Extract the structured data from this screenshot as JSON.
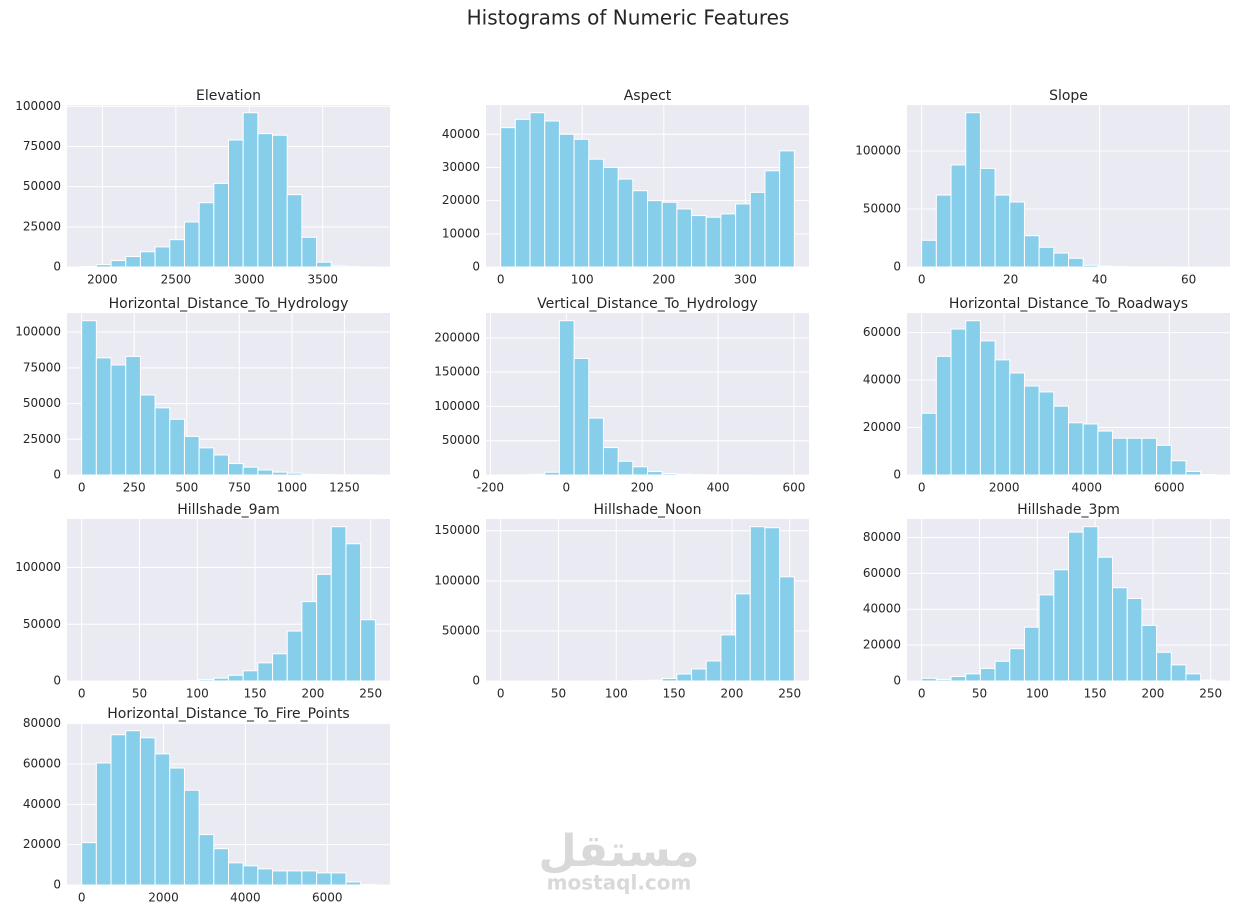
{
  "title": "Histograms of Numeric Features",
  "watermark": {
    "arabic": "مستقل",
    "text": "mostaql.com"
  },
  "chart_data": [
    {
      "type": "histogram",
      "title": "Elevation",
      "color": "#87ceeb",
      "grid": true,
      "bins": [
        1859,
        1958.95,
        2058.9,
        2158.85,
        2258.8,
        2358.75,
        2458.7,
        2558.65,
        2658.6,
        2758.55,
        2858.5,
        2958.45,
        3058.4,
        3158.35,
        3258.3,
        3358.25,
        3458.2,
        3558.15,
        3658.1,
        3758.05,
        3858
      ],
      "values": [
        300,
        1500,
        4000,
        6500,
        9500,
        12500,
        17000,
        28000,
        40000,
        52000,
        79000,
        96000,
        83000,
        82000,
        45000,
        18500,
        3000,
        700,
        200,
        50
      ],
      "xlim": [
        1759,
        3958
      ],
      "xticks": [
        2000,
        2500,
        3000,
        3500
      ],
      "ylim": [
        0,
        100800
      ],
      "yticks": [
        0,
        25000,
        50000,
        75000,
        100000
      ]
    },
    {
      "type": "histogram",
      "title": "Aspect",
      "color": "#87ceeb",
      "grid": true,
      "bins": [
        0,
        18,
        36,
        54,
        72,
        90,
        108,
        126,
        144,
        162,
        180,
        198,
        216,
        234,
        252,
        270,
        288,
        306,
        324,
        342,
        360
      ],
      "values": [
        42000,
        44500,
        46500,
        44000,
        40000,
        38500,
        32500,
        30000,
        26500,
        23000,
        20000,
        19500,
        17500,
        15500,
        15000,
        16000,
        19000,
        22500,
        29000,
        35000
      ],
      "xlim": [
        -18,
        378
      ],
      "xticks": [
        0,
        100,
        200,
        300
      ],
      "ylim": [
        0,
        48825
      ],
      "yticks": [
        0,
        10000,
        20000,
        30000,
        40000
      ]
    },
    {
      "type": "histogram",
      "title": "Slope",
      "color": "#87ceeb",
      "grid": true,
      "bins": [
        0,
        3.3,
        6.6,
        9.9,
        13.2,
        16.5,
        19.8,
        23.1,
        26.4,
        29.7,
        33,
        36.3,
        39.6,
        42.9,
        46.2,
        49.5,
        52.8,
        56.1,
        59.4,
        62.7,
        66
      ],
      "values": [
        23000,
        62000,
        88000,
        133000,
        85000,
        62000,
        56000,
        27000,
        17000,
        12000,
        7500,
        1500,
        700,
        300,
        100,
        50,
        20,
        10,
        5,
        2
      ],
      "xlim": [
        -3.3,
        69.3
      ],
      "xticks": [
        0,
        20,
        40,
        60
      ],
      "ylim": [
        0,
        139650
      ],
      "yticks": [
        0,
        50000,
        100000
      ]
    },
    {
      "type": "histogram",
      "title": "Horizontal_Distance_To_Hydrology",
      "color": "#87ceeb",
      "grid": true,
      "bins": [
        0,
        69.85,
        139.7,
        209.55,
        279.4,
        349.25,
        419.1,
        488.95,
        558.8,
        628.65,
        698.5,
        768.35,
        838.2,
        908.05,
        977.9,
        1047.75,
        1117.6,
        1187.45,
        1257.3,
        1327.15,
        1397
      ],
      "values": [
        108000,
        82000,
        77000,
        83000,
        56000,
        47000,
        39000,
        27000,
        19000,
        14000,
        8000,
        5500,
        3500,
        2000,
        1300,
        500,
        300,
        150,
        100,
        50
      ],
      "xlim": [
        -69.85,
        1466.85
      ],
      "xticks": [
        0,
        250,
        500,
        750,
        1000,
        1250
      ],
      "ylim": [
        0,
        113400
      ],
      "yticks": [
        0,
        25000,
        50000,
        75000,
        100000
      ]
    },
    {
      "type": "histogram",
      "title": "Vertical_Distance_To_Hydrology",
      "color": "#87ceeb",
      "grid": true,
      "bins": [
        -173,
        -134.3,
        -95.6,
        -56.9,
        -18.2,
        20.5,
        59.2,
        97.9,
        136.6,
        175.3,
        214,
        252.7,
        291.4,
        330.1,
        368.8,
        407.5,
        446.2,
        484.9,
        523.6,
        562.3,
        601
      ],
      "values": [
        50,
        200,
        1000,
        4000,
        225000,
        170000,
        83000,
        40000,
        20000,
        12000,
        5000,
        2000,
        1000,
        500,
        300,
        150,
        60,
        30,
        15,
        5
      ],
      "xlim": [
        -211.7,
        639.7
      ],
      "xticks": [
        -200,
        0,
        200,
        400,
        600
      ],
      "ylim": [
        0,
        236250
      ],
      "yticks": [
        0,
        50000,
        100000,
        150000,
        200000
      ]
    },
    {
      "type": "histogram",
      "title": "Horizontal_Distance_To_Roadways",
      "color": "#87ceeb",
      "grid": true,
      "bins": [
        0,
        355.85,
        711.7,
        1067.55,
        1423.4,
        1779.25,
        2135.1,
        2490.95,
        2846.8,
        3202.65,
        3558.5,
        3914.35,
        4270.2,
        4626.05,
        4981.9,
        5337.75,
        5693.6,
        6049.45,
        6405.3,
        6761.15,
        7117
      ],
      "values": [
        26000,
        50000,
        61500,
        65000,
        56500,
        48500,
        43000,
        37500,
        35000,
        29000,
        22000,
        21500,
        18500,
        15500,
        15500,
        15500,
        12500,
        6000,
        1500,
        200
      ],
      "xlim": [
        -355.85,
        7472.85
      ],
      "xticks": [
        0,
        2000,
        4000,
        6000
      ],
      "ylim": [
        0,
        68250
      ],
      "yticks": [
        0,
        20000,
        40000,
        60000
      ]
    },
    {
      "type": "histogram",
      "title": "Hillshade_9am",
      "color": "#87ceeb",
      "grid": true,
      "bins": [
        0,
        12.7,
        25.4,
        38.1,
        50.8,
        63.5,
        76.2,
        88.9,
        101.6,
        114.3,
        127,
        139.7,
        152.4,
        165.1,
        177.8,
        190.5,
        203.2,
        215.9,
        228.6,
        241.3,
        254
      ],
      "values": [
        10,
        10,
        10,
        20,
        30,
        50,
        100,
        300,
        1200,
        2500,
        5000,
        9000,
        16000,
        24000,
        44000,
        70000,
        94000,
        136000,
        121000,
        54000
      ],
      "xlim": [
        -12.7,
        266.7
      ],
      "xticks": [
        0,
        50,
        100,
        150,
        200,
        250
      ],
      "ylim": [
        0,
        142800
      ],
      "yticks": [
        0,
        50000,
        100000
      ]
    },
    {
      "type": "histogram",
      "title": "Hillshade_Noon",
      "color": "#87ceeb",
      "grid": true,
      "bins": [
        0,
        12.7,
        25.4,
        38.1,
        50.8,
        63.5,
        76.2,
        88.9,
        101.6,
        114.3,
        127,
        139.7,
        152.4,
        165.1,
        177.8,
        190.5,
        203.2,
        215.9,
        228.6,
        241.3,
        254
      ],
      "values": [
        10,
        10,
        10,
        10,
        10,
        10,
        10,
        50,
        100,
        300,
        800,
        2500,
        7000,
        12000,
        20000,
        46000,
        87000,
        154000,
        153000,
        104000
      ],
      "xlim": [
        -12.7,
        266.7
      ],
      "xticks": [
        0,
        50,
        100,
        150,
        200,
        250
      ],
      "ylim": [
        0,
        161700
      ],
      "yticks": [
        0,
        50000,
        100000,
        150000
      ]
    },
    {
      "type": "histogram",
      "title": "Hillshade_3pm",
      "color": "#87ceeb",
      "grid": true,
      "bins": [
        0,
        12.7,
        25.4,
        38.1,
        50.8,
        63.5,
        76.2,
        88.9,
        101.6,
        114.3,
        127,
        139.7,
        152.4,
        165.1,
        177.8,
        190.5,
        203.2,
        215.9,
        228.6,
        241.3,
        254
      ],
      "values": [
        1500,
        800,
        2500,
        4000,
        7000,
        11000,
        18000,
        30000,
        48000,
        62000,
        83000,
        86000,
        69000,
        52000,
        46000,
        31000,
        16000,
        9000,
        4000,
        500
      ],
      "xlim": [
        -12.7,
        266.7
      ],
      "xticks": [
        0,
        50,
        100,
        150,
        200,
        250
      ],
      "ylim": [
        0,
        90300
      ],
      "yticks": [
        0,
        20000,
        40000,
        60000,
        80000
      ]
    },
    {
      "type": "histogram",
      "title": "Horizontal_Distance_To_Fire_Points",
      "color": "#87ceeb",
      "grid": true,
      "bins": [
        0,
        358.65,
        717.3,
        1075.95,
        1434.6,
        1793.25,
        2151.9,
        2510.55,
        2869.2,
        3227.85,
        3586.5,
        3945.15,
        4303.8,
        4662.45,
        5021.1,
        5379.75,
        5738.4,
        6097.05,
        6455.7,
        6814.35,
        7173
      ],
      "values": [
        21000,
        60500,
        74500,
        76500,
        73000,
        65000,
        58000,
        47000,
        25000,
        18000,
        11000,
        9500,
        8000,
        7000,
        7000,
        7000,
        6000,
        6000,
        1500,
        200
      ],
      "xlim": [
        -358.65,
        7531.65
      ],
      "xticks": [
        0,
        2000,
        4000,
        6000
      ],
      "ylim": [
        0,
        80325
      ],
      "yticks": [
        0,
        20000,
        40000,
        60000,
        80000
      ]
    }
  ]
}
